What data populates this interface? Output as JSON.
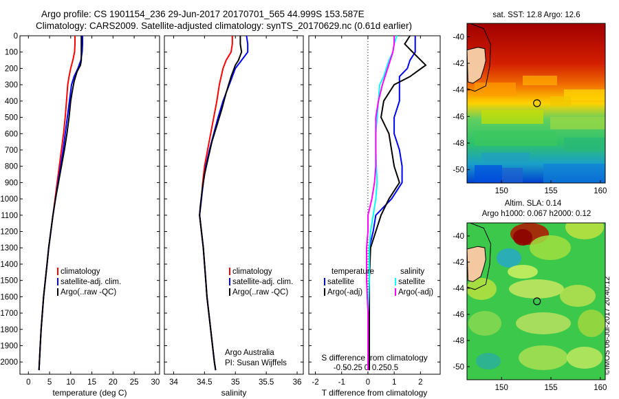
{
  "header": {
    "line1": "Argo profile: CS 1901154_236 29-Jun-2017 20170701_565 44.999S 153.587E",
    "line2": "Climatology: CARS2009. Satellite-adjusted climatology: synTS_20170629.nc (0.61d earlier)"
  },
  "colors": {
    "red": "#ff0000",
    "blue": "#0000ff",
    "black": "#000000",
    "cyan": "#00ffff",
    "magenta": "#ff00ff"
  },
  "chart_data": [
    {
      "type": "line",
      "xlabel": "temperature (deg C)",
      "xticks": [
        0,
        5,
        10,
        15,
        20,
        25,
        30
      ],
      "xlim": [
        -2,
        31
      ],
      "ylim": [
        2075,
        0
      ],
      "yticks": [
        0,
        100,
        200,
        300,
        400,
        500,
        600,
        700,
        800,
        900,
        1000,
        1100,
        1200,
        1300,
        1400,
        1500,
        1600,
        1700,
        1800,
        1900,
        2000
      ],
      "legend": [
        "climatology",
        "satellite-adj. clim.",
        "Argo(..raw -QC)"
      ],
      "series": [
        {
          "name": "climatology",
          "color": "red",
          "points": [
            [
              11.0,
              0
            ],
            [
              11.0,
              50
            ],
            [
              10.9,
              100
            ],
            [
              10.5,
              150
            ],
            [
              10.0,
              200
            ],
            [
              9.6,
              250
            ],
            [
              9.3,
              300
            ],
            [
              9.0,
              400
            ],
            [
              8.7,
              500
            ],
            [
              8.3,
              600
            ],
            [
              7.8,
              700
            ],
            [
              7.3,
              800
            ],
            [
              6.8,
              900
            ],
            [
              6.3,
              1000
            ],
            [
              5.8,
              1100
            ],
            [
              5.3,
              1200
            ],
            [
              4.8,
              1300
            ],
            [
              4.4,
              1400
            ],
            [
              4.0,
              1500
            ],
            [
              3.6,
              1600
            ],
            [
              3.3,
              1700
            ],
            [
              3.0,
              1800
            ],
            [
              2.8,
              1900
            ],
            [
              2.6,
              2000
            ],
            [
              2.5,
              2050
            ]
          ]
        },
        {
          "name": "satellite-adj. clim.",
          "color": "blue",
          "points": [
            [
              12.8,
              0
            ],
            [
              12.8,
              50
            ],
            [
              12.7,
              100
            ],
            [
              12.4,
              150
            ],
            [
              11.7,
              200
            ],
            [
              10.8,
              250
            ],
            [
              10.2,
              300
            ],
            [
              9.7,
              400
            ],
            [
              9.2,
              500
            ],
            [
              8.7,
              600
            ],
            [
              8.2,
              700
            ],
            [
              7.6,
              800
            ],
            [
              7.0,
              900
            ],
            [
              6.4,
              1000
            ],
            [
              5.8,
              1100
            ],
            [
              5.3,
              1200
            ],
            [
              4.8,
              1300
            ],
            [
              4.4,
              1400
            ],
            [
              4.0,
              1500
            ],
            [
              3.6,
              1600
            ],
            [
              3.3,
              1700
            ],
            [
              3.0,
              1800
            ],
            [
              2.8,
              1900
            ],
            [
              2.6,
              2000
            ],
            [
              2.5,
              2050
            ]
          ]
        },
        {
          "name": "Argo(..raw -QC)",
          "color": "black",
          "points": [
            [
              12.5,
              0
            ],
            [
              12.5,
              50
            ],
            [
              12.5,
              100
            ],
            [
              12.5,
              150
            ],
            [
              12.3,
              180
            ],
            [
              11.5,
              220
            ],
            [
              10.8,
              280
            ],
            [
              10.3,
              350
            ],
            [
              10.0,
              400
            ],
            [
              9.6,
              500
            ],
            [
              9.1,
              600
            ],
            [
              8.5,
              700
            ],
            [
              7.8,
              800
            ],
            [
              7.1,
              900
            ],
            [
              6.4,
              1000
            ],
            [
              5.8,
              1100
            ],
            [
              5.3,
              1200
            ],
            [
              4.8,
              1300
            ],
            [
              4.4,
              1400
            ],
            [
              4.0,
              1500
            ],
            [
              3.6,
              1600
            ],
            [
              3.3,
              1700
            ],
            [
              3.0,
              1800
            ],
            [
              2.8,
              1900
            ],
            [
              2.6,
              2000
            ],
            [
              2.5,
              2050
            ]
          ]
        }
      ]
    },
    {
      "type": "line",
      "xlabel": "salinity",
      "xticks": [
        34,
        34.5,
        35,
        35.5,
        36
      ],
      "xlim": [
        33.85,
        36.1
      ],
      "ylim": [
        2075,
        0
      ],
      "legend": [
        "climatology",
        "satellite-adj. clim.",
        "Argo(..raw -QC)"
      ],
      "annotation": [
        "Argo Australia",
        "PI: Susan Wijffels"
      ],
      "series": [
        {
          "name": "climatology",
          "color": "red",
          "points": [
            [
              34.95,
              0
            ],
            [
              34.95,
              50
            ],
            [
              34.93,
              100
            ],
            [
              34.85,
              150
            ],
            [
              34.8,
              200
            ],
            [
              34.74,
              300
            ],
            [
              34.7,
              400
            ],
            [
              34.65,
              500
            ],
            [
              34.6,
              600
            ],
            [
              34.55,
              700
            ],
            [
              34.5,
              800
            ],
            [
              34.47,
              900
            ],
            [
              34.45,
              1000
            ],
            [
              34.42,
              1100
            ],
            [
              34.45,
              1200
            ],
            [
              34.48,
              1300
            ],
            [
              34.5,
              1400
            ],
            [
              34.52,
              1500
            ],
            [
              34.54,
              1600
            ],
            [
              34.57,
              1700
            ],
            [
              34.6,
              1800
            ],
            [
              34.63,
              1900
            ],
            [
              34.66,
              2000
            ],
            [
              34.68,
              2050
            ]
          ]
        },
        {
          "name": "satellite-adj. clim.",
          "color": "blue",
          "points": [
            [
              35.18,
              0
            ],
            [
              35.2,
              50
            ],
            [
              35.2,
              100
            ],
            [
              35.1,
              150
            ],
            [
              35.0,
              200
            ],
            [
              34.9,
              300
            ],
            [
              34.8,
              400
            ],
            [
              34.72,
              500
            ],
            [
              34.65,
              600
            ],
            [
              34.58,
              700
            ],
            [
              34.52,
              800
            ],
            [
              34.48,
              900
            ],
            [
              34.45,
              1000
            ],
            [
              34.42,
              1100
            ],
            [
              34.45,
              1200
            ],
            [
              34.48,
              1300
            ],
            [
              34.5,
              1400
            ],
            [
              34.52,
              1500
            ],
            [
              34.54,
              1600
            ],
            [
              34.57,
              1700
            ],
            [
              34.6,
              1800
            ],
            [
              34.63,
              1900
            ],
            [
              34.66,
              2000
            ],
            [
              34.68,
              2050
            ]
          ]
        },
        {
          "name": "Argo(..raw -QC)",
          "color": "black",
          "points": [
            [
              35.08,
              0
            ],
            [
              35.08,
              50
            ],
            [
              35.1,
              100
            ],
            [
              35.05,
              150
            ],
            [
              35.0,
              180
            ],
            [
              34.93,
              250
            ],
            [
              34.85,
              350
            ],
            [
              34.78,
              450
            ],
            [
              34.7,
              550
            ],
            [
              34.62,
              650
            ],
            [
              34.56,
              750
            ],
            [
              34.5,
              850
            ],
            [
              34.46,
              950
            ],
            [
              34.43,
              1050
            ],
            [
              34.42,
              1100
            ],
            [
              34.45,
              1200
            ],
            [
              34.48,
              1300
            ],
            [
              34.5,
              1400
            ],
            [
              34.52,
              1500
            ],
            [
              34.54,
              1600
            ],
            [
              34.57,
              1700
            ],
            [
              34.6,
              1800
            ],
            [
              34.63,
              1900
            ],
            [
              34.66,
              2000
            ],
            [
              34.68,
              2050
            ]
          ]
        }
      ]
    },
    {
      "type": "line",
      "xlabel": "T difference from climatology",
      "xticks": [
        -2,
        -1,
        0,
        1,
        2
      ],
      "xlim": [
        -2.25,
        2.75
      ],
      "top_label": "S difference from climatology",
      "top_ticks": [
        "-0.5",
        "-0.25",
        "0",
        "0.25",
        "0.5"
      ],
      "ylim": [
        2075,
        0
      ],
      "legend_left_title": "temperature",
      "legend_left": [
        "satellite",
        "Argo(-adj)"
      ],
      "legend_right_title": "salinity",
      "legend_right": [
        "satellite",
        "Argo(-adj)"
      ],
      "series": [
        {
          "name": "satellite",
          "color": "blue",
          "quantity": "temperature",
          "points": [
            [
              1.8,
              0
            ],
            [
              1.8,
              50
            ],
            [
              1.8,
              100
            ],
            [
              1.6,
              150
            ],
            [
              1.5,
              200
            ],
            [
              1.2,
              250
            ],
            [
              1.2,
              300
            ],
            [
              1.2,
              400
            ],
            [
              1.0,
              500
            ],
            [
              1.0,
              600
            ],
            [
              1.2,
              700
            ],
            [
              1.3,
              800
            ],
            [
              1.3,
              900
            ],
            [
              0.9,
              1000
            ],
            [
              0.3,
              1100
            ],
            [
              0.2,
              1200
            ],
            [
              0.05,
              1300
            ],
            [
              0.05,
              1500
            ],
            [
              0.05,
              1700
            ],
            [
              0.05,
              1900
            ],
            [
              0.05,
              2050
            ]
          ]
        },
        {
          "name": "Argo(-adj)",
          "color": "black",
          "quantity": "temperature",
          "points": [
            [
              1.6,
              0
            ],
            [
              1.4,
              50
            ],
            [
              1.7,
              100
            ],
            [
              2.2,
              180
            ],
            [
              1.6,
              250
            ],
            [
              1.0,
              300
            ],
            [
              0.6,
              400
            ],
            [
              0.5,
              500
            ],
            [
              0.8,
              600
            ],
            [
              0.9,
              700
            ],
            [
              1.0,
              800
            ],
            [
              1.2,
              900
            ],
            [
              0.8,
              1000
            ],
            [
              0.5,
              1100
            ],
            [
              0.3,
              1200
            ],
            [
              0.1,
              1300
            ],
            [
              0.05,
              1500
            ],
            [
              0.05,
              1700
            ],
            [
              0.05,
              1900
            ],
            [
              0.05,
              2050
            ]
          ]
        },
        {
          "name": "satellite",
          "color": "cyan",
          "quantity": "salinity",
          "points": [
            [
              1.1,
              0
            ],
            [
              1.0,
              50
            ],
            [
              0.95,
              100
            ],
            [
              0.8,
              150
            ],
            [
              0.6,
              250
            ],
            [
              0.45,
              300
            ],
            [
              0.4,
              400
            ],
            [
              0.35,
              500
            ],
            [
              0.3,
              600
            ],
            [
              0.3,
              700
            ],
            [
              0.32,
              800
            ],
            [
              0.35,
              900
            ],
            [
              0.3,
              1000
            ],
            [
              0.2,
              1100
            ],
            [
              0.1,
              1200
            ],
            [
              0.05,
              1300
            ],
            [
              0.05,
              1500
            ],
            [
              0.0,
              1700
            ],
            [
              0.0,
              1900
            ],
            [
              0.0,
              2050
            ]
          ]
        },
        {
          "name": "Argo(-adj)",
          "color": "magenta",
          "quantity": "salinity",
          "points": [
            [
              1.0,
              0
            ],
            [
              1.0,
              50
            ],
            [
              0.95,
              100
            ],
            [
              0.75,
              200
            ],
            [
              0.55,
              300
            ],
            [
              0.4,
              400
            ],
            [
              0.3,
              500
            ],
            [
              0.3,
              600
            ],
            [
              0.3,
              700
            ],
            [
              0.3,
              800
            ],
            [
              0.25,
              900
            ],
            [
              0.15,
              1000
            ],
            [
              0.0,
              1100
            ],
            [
              0.0,
              1200
            ],
            [
              -0.05,
              1300
            ],
            [
              -0.05,
              1500
            ],
            [
              0.0,
              1700
            ],
            [
              0.0,
              1900
            ],
            [
              0.0,
              2050
            ]
          ]
        }
      ]
    },
    {
      "type": "heatmap",
      "title": "sat. SST: 12.8 Argo: 12.6",
      "xticks": [
        150,
        155,
        160
      ],
      "yticks": [
        -40,
        -42,
        -44,
        -46,
        -48,
        -50
      ],
      "xlim": [
        146.5,
        160.5
      ],
      "ylim": [
        -51,
        -39
      ],
      "marker": {
        "lon": 153.587,
        "lat": -44.999
      }
    },
    {
      "type": "heatmap",
      "title_lines": [
        "Altim. SLA: 0.14",
        "Argo h1000: 0.067 h2000: 0.12"
      ],
      "xticks": [
        150,
        155,
        160
      ],
      "yticks": [
        -40,
        -42,
        -44,
        -46,
        -48,
        -50
      ],
      "xlim": [
        146.5,
        160.5
      ],
      "ylim": [
        -51,
        -39
      ],
      "marker": {
        "lon": 153.587,
        "lat": -44.999
      }
    }
  ],
  "footer": {
    "credit": "©IMOS 06-Jul-2017 20:40:12"
  }
}
